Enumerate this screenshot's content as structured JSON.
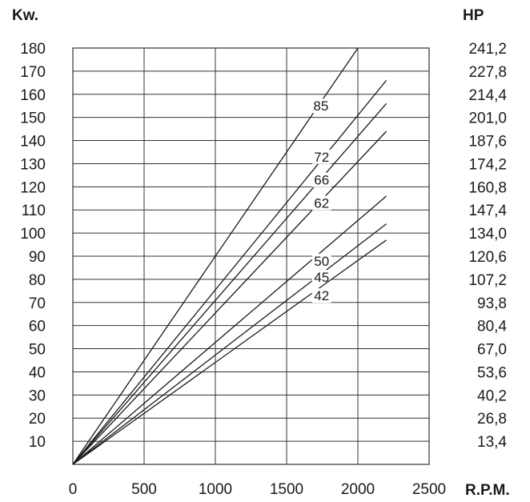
{
  "chart_data": {
    "type": "line",
    "left_axis_unit": "Kw.",
    "right_axis_unit": "HP",
    "x_axis_unit": "R.P.M.",
    "x_ticks": [
      "0",
      "500",
      "1000",
      "1500",
      "2000",
      "2500"
    ],
    "xlim": [
      0,
      2500
    ],
    "ylim": [
      0,
      180
    ],
    "y_ticks_left": [
      "180",
      "170",
      "160",
      "150",
      "140",
      "130",
      "120",
      "110",
      "100",
      "90",
      "80",
      "70",
      "60",
      "50",
      "40",
      "30",
      "20",
      "10"
    ],
    "y_ticks_right": [
      "241,2",
      "227,8",
      "214,4",
      "201,0",
      "187,6",
      "174,2",
      "160,8",
      "147,4",
      "134,0",
      "120,6",
      "107,2",
      "93,8",
      "80,4",
      "67,0",
      "53,6",
      "40,2",
      "26,8",
      "13,4"
    ],
    "grid": true,
    "series": [
      {
        "name": "85",
        "x": [
          0,
          2000
        ],
        "y": [
          0,
          180
        ],
        "label_at": [
          1735,
          155
        ]
      },
      {
        "name": "72",
        "x": [
          0,
          2200
        ],
        "y": [
          0,
          166
        ],
        "label_at": [
          1740,
          133
        ]
      },
      {
        "name": "66",
        "x": [
          0,
          2200
        ],
        "y": [
          0,
          156
        ],
        "label_at": [
          1740,
          123
        ]
      },
      {
        "name": "62",
        "x": [
          0,
          2200
        ],
        "y": [
          0,
          144
        ],
        "label_at": [
          1740,
          113
        ]
      },
      {
        "name": "50",
        "x": [
          0,
          2200
        ],
        "y": [
          0,
          116
        ],
        "label_at": [
          1740,
          88
        ]
      },
      {
        "name": "45",
        "x": [
          0,
          2200
        ],
        "y": [
          0,
          104
        ],
        "label_at": [
          1740,
          81
        ]
      },
      {
        "name": "42",
        "x": [
          0,
          2200
        ],
        "y": [
          0,
          97
        ],
        "label_at": [
          1740,
          73
        ]
      }
    ]
  }
}
